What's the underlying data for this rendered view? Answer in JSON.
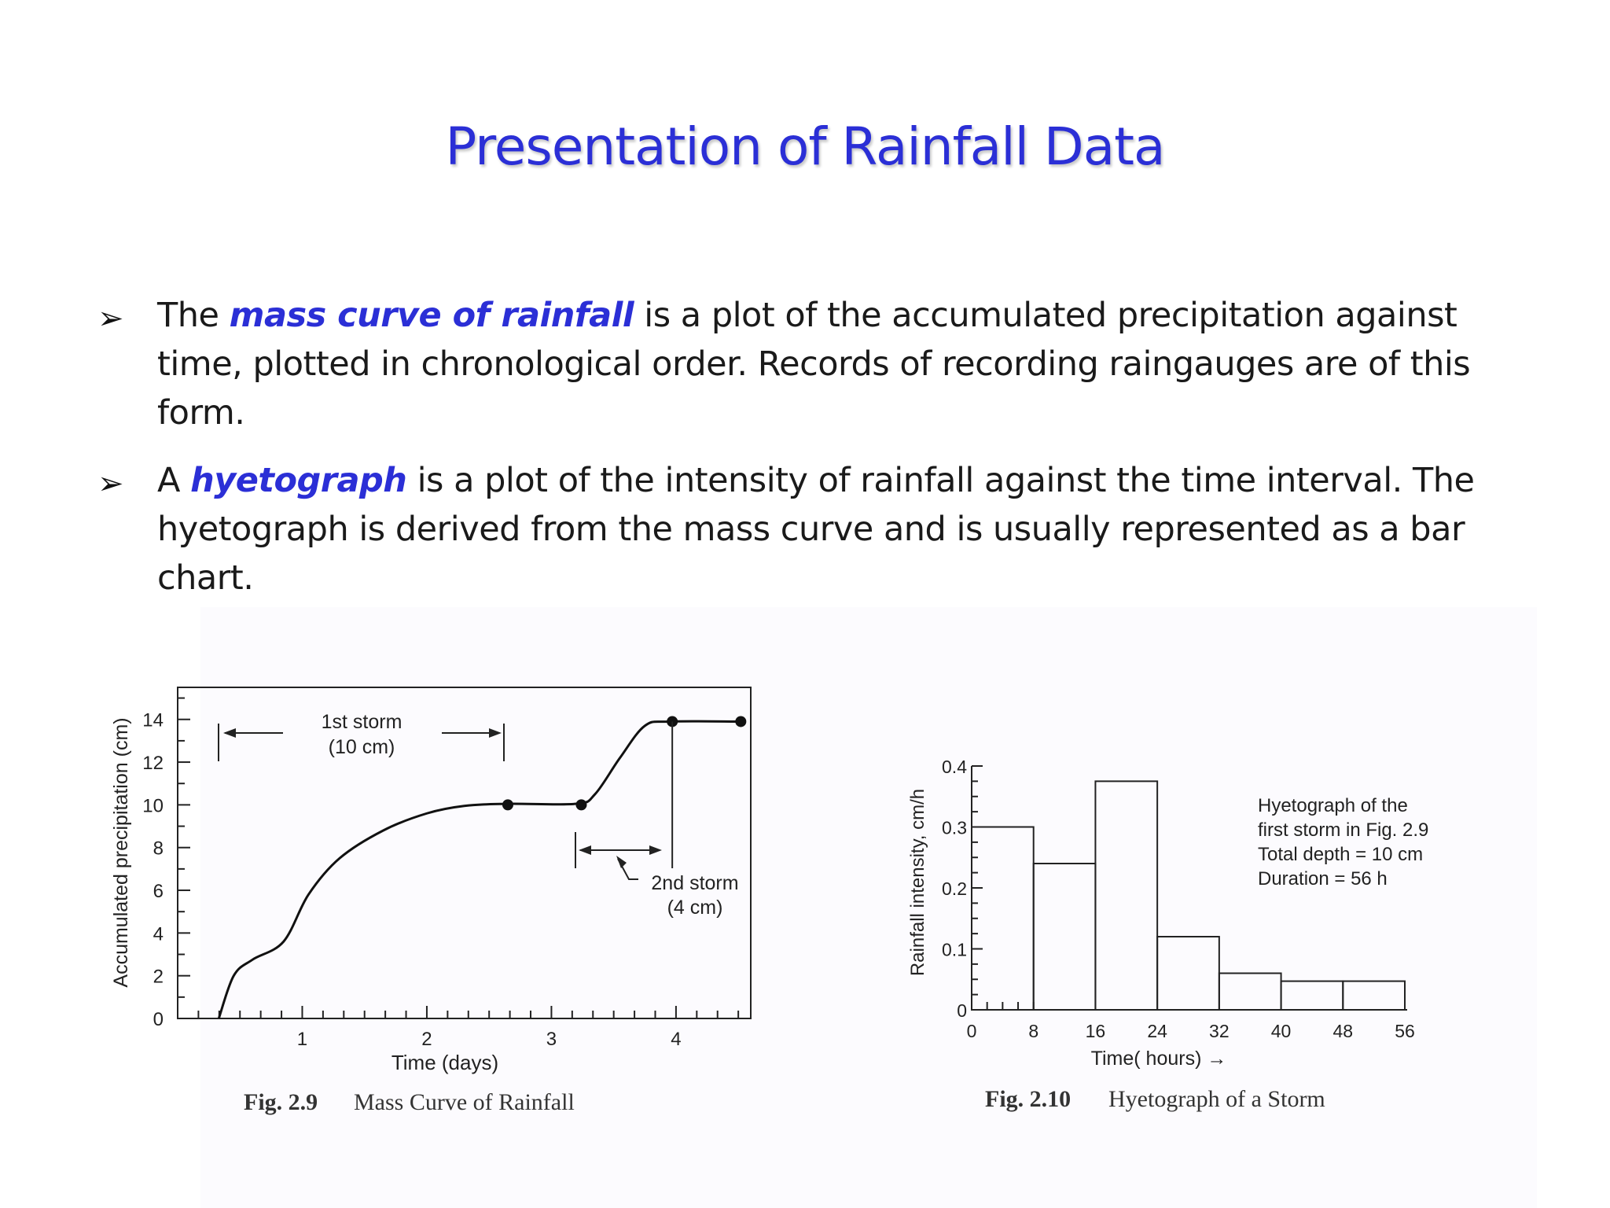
{
  "slide": {
    "title": "Presentation of Rainfall Data",
    "bullets": [
      {
        "marker": "➢",
        "before": "The ",
        "term": "mass curve of rainfall",
        "after": " is a plot of the accumulated precipitation against time, plotted in chronological order.  Records of recording raingauges are of this form."
      },
      {
        "marker": "➢",
        "before": "A ",
        "term": "hyetograph",
        "after": " is a plot of the intensity of rainfall against the time interval. The hyetograph is derived from the mass curve and is usually represented as a bar chart."
      }
    ],
    "colors": {
      "accent": "#2b2fd6",
      "text": "#1a1a1a"
    }
  },
  "chart_data": [
    {
      "type": "line",
      "caption_num": "Fig. 2.9",
      "caption_text": "Mass Curve of Rainfall",
      "xlabel": "Time (days)",
      "ylabel": "Accumulated precipitation (cm)",
      "xticks": [
        1,
        2,
        3,
        4
      ],
      "yticks": [
        0,
        2,
        4,
        6,
        8,
        10,
        12,
        14
      ],
      "xlim": [
        0,
        4.6
      ],
      "ylim": [
        0,
        15.5
      ],
      "x": [
        0.33,
        0.45,
        0.6,
        0.85,
        1.05,
        1.3,
        1.65,
        2.0,
        2.3,
        2.65,
        3.2,
        3.35,
        3.55,
        3.75,
        3.95,
        4.5
      ],
      "y": [
        0,
        2.0,
        2.75,
        3.6,
        5.8,
        7.5,
        8.8,
        9.6,
        9.95,
        10.05,
        10.05,
        10.5,
        12.2,
        13.7,
        13.9,
        13.9
      ],
      "markers": [
        {
          "x": 2.65,
          "y": 10
        },
        {
          "x": 3.24,
          "y": 10
        },
        {
          "x": 3.97,
          "y": 13.9
        },
        {
          "x": 4.52,
          "y": 13.9
        }
      ],
      "annotations": {
        "storm1_label": "1st storm",
        "storm1_depth": "(10 cm)",
        "storm2_label": "2nd storm",
        "storm2_depth": "(4 cm)"
      },
      "grid": false
    },
    {
      "type": "bar",
      "caption_num": "Fig. 2.10",
      "caption_text": "Hyetograph of a Storm",
      "xlabel": "Time( hours) →",
      "ylabel": "Rainfall intensity, cm/h",
      "xticks": [
        0,
        8,
        16,
        24,
        32,
        40,
        48,
        56
      ],
      "yticks": [
        0,
        0.1,
        0.2,
        0.3,
        0.4
      ],
      "ylim": [
        0,
        0.4
      ],
      "bins": [
        [
          0,
          8
        ],
        [
          8,
          16
        ],
        [
          16,
          24
        ],
        [
          24,
          32
        ],
        [
          32,
          40
        ],
        [
          40,
          48
        ],
        [
          48,
          56
        ]
      ],
      "values": [
        0.3,
        0.24,
        0.375,
        0.12,
        0.06,
        0.047,
        0.047
      ],
      "annotation_lines": [
        "Hyetograph of the",
        "first storm in Fig. 2.9",
        "Total depth = 10 cm",
        "Duration = 56 h"
      ],
      "grid": false
    }
  ]
}
